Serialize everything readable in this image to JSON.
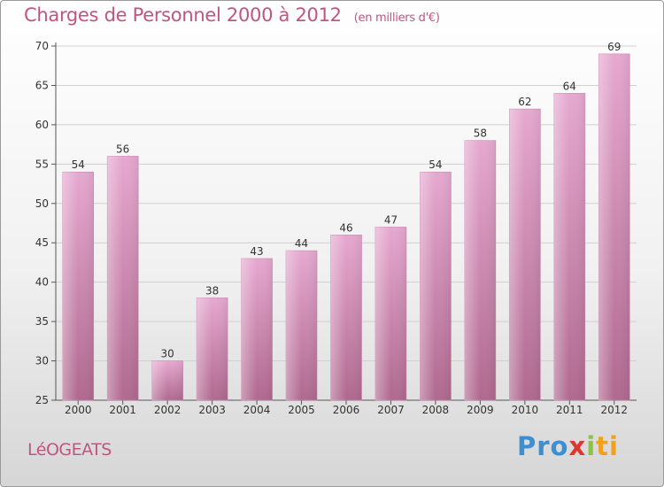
{
  "chart_data": {
    "type": "bar",
    "title": "Charges de Personnel 2000 à 2012",
    "subtitle": "(en milliers d'€)",
    "categories": [
      "2000",
      "2001",
      "2002",
      "2003",
      "2004",
      "2005",
      "2006",
      "2007",
      "2008",
      "2009",
      "2010",
      "2011",
      "2012"
    ],
    "values": [
      54,
      56,
      30,
      38,
      43,
      44,
      46,
      47,
      54,
      58,
      62,
      64,
      69
    ],
    "ylim": [
      25,
      70
    ],
    "yticks": [
      25,
      30,
      35,
      40,
      45,
      50,
      55,
      60,
      65,
      70
    ],
    "grid": true,
    "data_labels": true,
    "colors": {
      "bar_top": "#e6a8d0",
      "bar_bottom": "#b0698f",
      "text": "#c0557f",
      "grid": "#d0d0d0"
    }
  },
  "footer": {
    "commune": "LéOGEATS",
    "logo": {
      "p1": "Pro",
      "p2": "x",
      "p3": "i",
      "p4": "ti"
    }
  }
}
